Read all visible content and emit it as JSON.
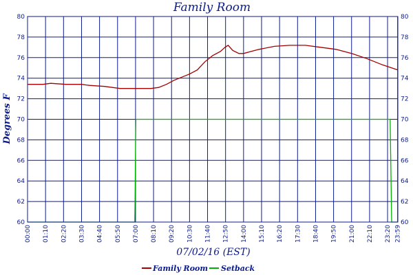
{
  "chart_data": {
    "type": "line",
    "title": "Family Room",
    "ylabel": "Degrees F",
    "xlabel": "07/02/16 (EST)",
    "ylim": [
      60,
      80
    ],
    "yticks": [
      "60",
      "62",
      "64",
      "66",
      "68",
      "70",
      "72",
      "74",
      "76",
      "78",
      "80"
    ],
    "xticks": [
      "00:00",
      "01:10",
      "02:20",
      "03:30",
      "04:40",
      "05:50",
      "07:00",
      "08:10",
      "09:20",
      "10:30",
      "11:40",
      "12:50",
      "14:00",
      "15:10",
      "16:20",
      "17:30",
      "18:40",
      "19:50",
      "21:00",
      "22:10",
      "23:20",
      "23:59"
    ],
    "x_range_hours": [
      0,
      24
    ],
    "grid": true,
    "legend_position": "bottom",
    "series": [
      {
        "name": "Family Room",
        "color": "#a00000",
        "points": [
          [
            0,
            73.4
          ],
          [
            1.0,
            73.4
          ],
          [
            1.5,
            73.5
          ],
          [
            2.5,
            73.4
          ],
          [
            3.5,
            73.4
          ],
          [
            4.0,
            73.3
          ],
          [
            5.0,
            73.2
          ],
          [
            5.5,
            73.1
          ],
          [
            6.0,
            73.0
          ],
          [
            7.0,
            73.0
          ],
          [
            8.0,
            73.0
          ],
          [
            8.5,
            73.1
          ],
          [
            9.0,
            73.4
          ],
          [
            9.5,
            73.8
          ],
          [
            10.0,
            74.1
          ],
          [
            10.5,
            74.4
          ],
          [
            11.0,
            74.8
          ],
          [
            11.5,
            75.6
          ],
          [
            12.0,
            76.2
          ],
          [
            12.5,
            76.6
          ],
          [
            12.8,
            77.0
          ],
          [
            13.0,
            77.2
          ],
          [
            13.3,
            76.7
          ],
          [
            13.7,
            76.4
          ],
          [
            14.0,
            76.4
          ],
          [
            14.5,
            76.6
          ],
          [
            15.0,
            76.8
          ],
          [
            16.0,
            77.1
          ],
          [
            17.0,
            77.2
          ],
          [
            18.0,
            77.2
          ],
          [
            19.0,
            77.0
          ],
          [
            20.0,
            76.8
          ],
          [
            21.0,
            76.4
          ],
          [
            22.0,
            75.9
          ],
          [
            23.0,
            75.3
          ],
          [
            24.0,
            74.8
          ]
        ]
      },
      {
        "name": "Setback",
        "color": "#00b000",
        "points": [
          [
            0,
            60
          ],
          [
            6.95,
            60
          ],
          [
            6.97,
            62
          ],
          [
            7.0,
            67.5
          ],
          [
            7.02,
            70
          ],
          [
            23.5,
            70
          ],
          [
            23.55,
            65
          ],
          [
            23.6,
            60
          ],
          [
            24.0,
            60
          ]
        ]
      }
    ]
  }
}
